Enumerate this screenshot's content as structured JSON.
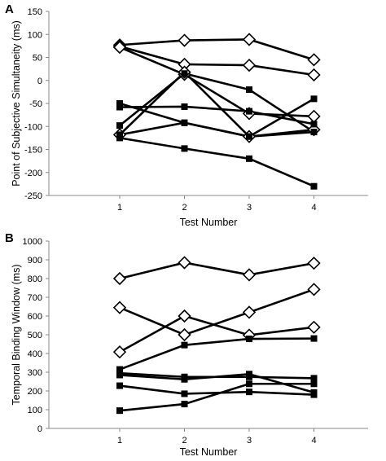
{
  "chart_data": [
    {
      "type": "line",
      "panel_label": "A",
      "xlabel": "Test Number",
      "ylabel": "Point of Subjective Simultaneity (ms)",
      "categories": [
        "1",
        "2",
        "3",
        "4"
      ],
      "ylim": [
        -250,
        150
      ],
      "yticks": [
        -250,
        -200,
        -150,
        -100,
        -50,
        0,
        50,
        100,
        150
      ],
      "grid": false,
      "legend": "none",
      "series": [
        {
          "marker": "diamond",
          "values": [
            77,
            87,
            89,
            45
          ]
        },
        {
          "marker": "diamond",
          "values": [
            74,
            35,
            33,
            12
          ]
        },
        {
          "marker": "diamond",
          "values": [
            72,
            13,
            -72,
            -78
          ]
        },
        {
          "marker": "diamond",
          "values": [
            -118,
            18,
            -122,
            -107
          ]
        },
        {
          "marker": "square",
          "values": [
            -50,
            -92,
            -122,
            -40
          ]
        },
        {
          "marker": "square",
          "values": [
            -58,
            -57,
            -67,
            -95
          ]
        },
        {
          "marker": "square",
          "values": [
            -98,
            15,
            -20,
            -112
          ]
        },
        {
          "marker": "square",
          "values": [
            -125,
            -148,
            -170,
            -230
          ]
        },
        {
          "marker": "square",
          "values": [
            -118,
            -92,
            -122,
            -112
          ]
        }
      ]
    },
    {
      "type": "line",
      "panel_label": "B",
      "xlabel": "Test Number",
      "ylabel": "Temporal Binding Window (ms)",
      "categories": [
        "1",
        "2",
        "3",
        "4"
      ],
      "ylim": [
        0,
        1000
      ],
      "yticks": [
        0,
        100,
        200,
        300,
        400,
        500,
        600,
        700,
        800,
        900,
        1000
      ],
      "grid": false,
      "legend": "none",
      "series": [
        {
          "marker": "diamond",
          "values": [
            800,
            885,
            820,
            882
          ]
        },
        {
          "marker": "diamond",
          "values": [
            645,
            500,
            620,
            742
          ]
        },
        {
          "marker": "diamond",
          "values": [
            408,
            600,
            498,
            540
          ]
        },
        {
          "marker": "square",
          "values": [
            315,
            445,
            478,
            480
          ]
        },
        {
          "marker": "square",
          "values": [
            295,
            275,
            275,
            268
          ]
        },
        {
          "marker": "square",
          "values": [
            285,
            262,
            290,
            192
          ]
        },
        {
          "marker": "square",
          "values": [
            228,
            185,
            195,
            180
          ]
        },
        {
          "marker": "square",
          "values": [
            95,
            130,
            238,
            238
          ]
        }
      ]
    }
  ]
}
